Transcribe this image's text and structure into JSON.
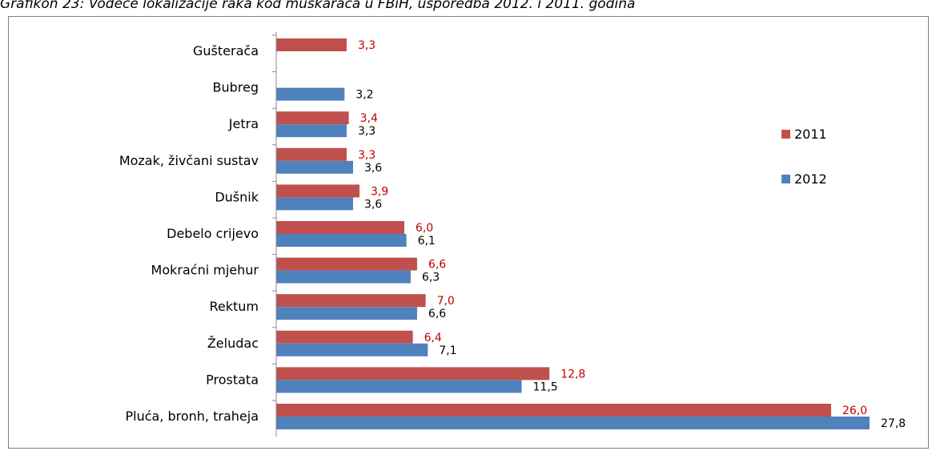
{
  "caption": "Grafikon  23: Vodeće lokalizacije raka kod muškaraca  u FBiH, usporedba 2012. i 2011. godina",
  "chart_data": {
    "type": "bar",
    "orientation": "horizontal",
    "categories": [
      "Gušterača",
      "Bubreg",
      "Jetra",
      "Mozak, živčani sustav",
      "Dušnik",
      "Debelo crijevo",
      "Mokraćni mjehur",
      "Rektum",
      "Želudac",
      "Prostata",
      "Pluća, bronh, traheja"
    ],
    "series": [
      {
        "name": "2011",
        "color": "#c0504d",
        "label_color": "#c00000",
        "values": [
          3.3,
          null,
          3.4,
          3.3,
          3.9,
          6.0,
          6.6,
          7.0,
          6.4,
          12.8,
          26.0
        ],
        "labels": [
          "3,3",
          "",
          "3,4",
          "3,3",
          "3,9",
          "6,0",
          "6,6",
          "7,0",
          "6,4",
          "12,8",
          "26,0"
        ]
      },
      {
        "name": "2012",
        "color": "#4f81bd",
        "label_color": "#000000",
        "values": [
          null,
          3.2,
          3.3,
          3.6,
          3.6,
          6.1,
          6.3,
          6.6,
          7.1,
          11.5,
          27.8
        ],
        "labels": [
          "",
          "3,2",
          "3,3",
          "3,6",
          "3,6",
          "6,1",
          "6,3",
          "6,6",
          "7,1",
          "11,5",
          "27,8"
        ]
      }
    ],
    "xlim": [
      0,
      27.8
    ],
    "grid": false,
    "legend_position": "right"
  }
}
